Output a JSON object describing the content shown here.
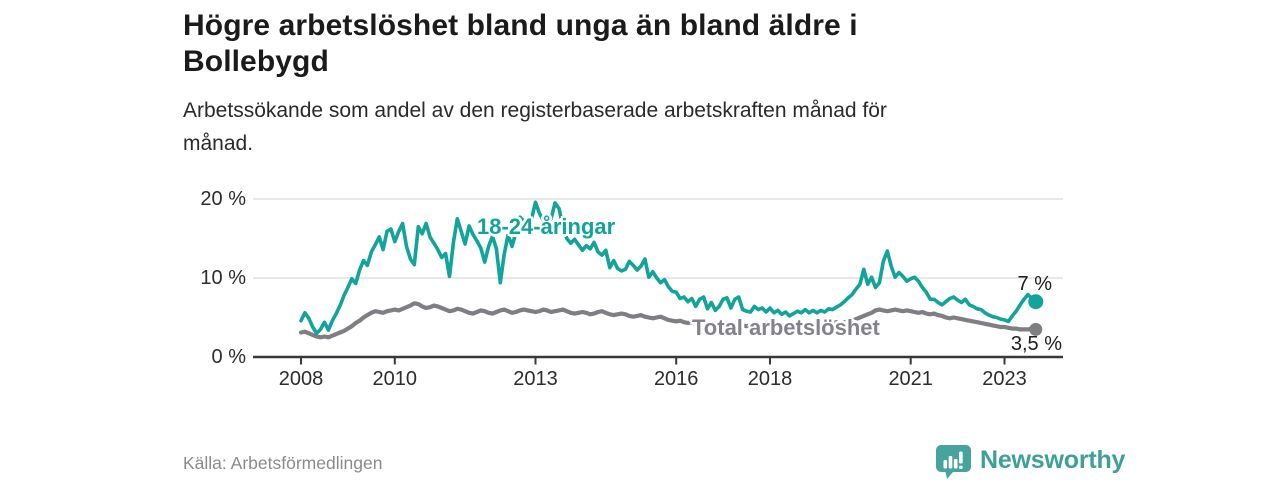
{
  "header": {
    "title_lines": [
      "Högre arbetslöshet bland unga än bland äldre i",
      "Bollebygd"
    ],
    "subtitle_lines": [
      "Arbetssökande som andel av den registerbaserade arbetskraften månad för",
      "månad."
    ]
  },
  "chart_data": {
    "type": "line",
    "title": "Högre arbetslöshet bland unga än bland äldre i Bollebygd",
    "subtitle": "Arbetssökande som andel av den registerbaserade arbetskraften månad för månad.",
    "x_unit": "month",
    "x_start": "2008-01",
    "x_end": "2023-09",
    "x_ticks": [
      "2008",
      "2010",
      "2013",
      "2016",
      "2018",
      "2021",
      "2023"
    ],
    "y_ticks": [
      "0 %",
      "10 %",
      "20 %"
    ],
    "y_tick_values": [
      0,
      10,
      20
    ],
    "ylim": [
      0,
      21
    ],
    "grid": true,
    "grid_color": "#d9d9d9",
    "axis_color": "#383838",
    "series": [
      {
        "name": "Total arbetslöshet",
        "color": "#7e7e83",
        "end_value_label": "3,5 %",
        "values": [
          3.1,
          3.2,
          3.0,
          2.8,
          2.6,
          2.5,
          2.6,
          2.5,
          2.7,
          2.9,
          3.1,
          3.3,
          3.6,
          3.9,
          4.3,
          4.6,
          5.0,
          5.3,
          5.6,
          5.8,
          5.7,
          5.6,
          5.8,
          5.9,
          6.0,
          5.9,
          6.1,
          6.3,
          6.5,
          6.8,
          6.7,
          6.4,
          6.2,
          6.3,
          6.5,
          6.4,
          6.2,
          6.0,
          5.8,
          5.9,
          6.1,
          6.0,
          5.8,
          5.6,
          5.5,
          5.7,
          5.9,
          5.8,
          5.6,
          5.5,
          5.7,
          5.9,
          6.0,
          5.8,
          5.6,
          5.7,
          5.9,
          6.0,
          5.9,
          5.8,
          5.7,
          5.8,
          6.0,
          5.9,
          5.7,
          5.8,
          5.9,
          6.0,
          5.8,
          5.6,
          5.5,
          5.6,
          5.7,
          5.6,
          5.4,
          5.5,
          5.7,
          5.8,
          5.6,
          5.4,
          5.3,
          5.4,
          5.5,
          5.4,
          5.2,
          5.1,
          5.2,
          5.3,
          5.1,
          5.0,
          4.9,
          5.0,
          5.1,
          4.9,
          4.7,
          4.6,
          4.5,
          4.6,
          4.4,
          4.3,
          4.4,
          4.2,
          4.1,
          4.2,
          4.3,
          4.1,
          4.0,
          4.1,
          4.2,
          4.1,
          4.0,
          4.1,
          4.2,
          4.0,
          3.9,
          4.0,
          4.1,
          4.0,
          3.9,
          4.0,
          4.1,
          4.0,
          3.9,
          4.0,
          4.1,
          4.0,
          3.9,
          3.8,
          3.9,
          4.0,
          3.9,
          4.0,
          4.1,
          4.2,
          4.1,
          4.2,
          4.3,
          4.4,
          4.3,
          4.4,
          4.5,
          4.6,
          4.8,
          5.0,
          5.2,
          5.4,
          5.6,
          5.9,
          6.0,
          5.9,
          5.8,
          5.9,
          6.0,
          5.9,
          5.8,
          5.9,
          5.8,
          5.7,
          5.6,
          5.7,
          5.5,
          5.4,
          5.5,
          5.3,
          5.2,
          5.0,
          4.9,
          5.0,
          4.9,
          4.8,
          4.7,
          4.6,
          4.5,
          4.4,
          4.3,
          4.2,
          4.1,
          4.0,
          3.9,
          3.8,
          3.8,
          3.7,
          3.6,
          3.6,
          3.5,
          3.5,
          3.5,
          3.6,
          3.5
        ]
      },
      {
        "name": "18-24-åringar",
        "color": "#12a49b",
        "end_value_label": "7 %",
        "values": [
          4.6,
          5.6,
          4.9,
          3.8,
          3.0,
          3.5,
          4.4,
          3.4,
          4.6,
          5.5,
          6.5,
          7.8,
          8.8,
          9.9,
          9.3,
          11.0,
          12.2,
          11.6,
          13.3,
          14.2,
          15.2,
          13.6,
          15.9,
          16.2,
          14.6,
          15.9,
          16.9,
          14.0,
          12.4,
          11.7,
          16.5,
          15.6,
          16.9,
          15.2,
          14.4,
          13.6,
          12.6,
          13.1,
          10.2,
          14.5,
          17.5,
          15.9,
          14.3,
          16.6,
          15.5,
          14.7,
          13.8,
          12.0,
          14.0,
          15.3,
          13.7,
          9.4,
          13.0,
          15.5,
          14.0,
          15.8,
          17.7,
          17.2,
          16.2,
          17.5,
          19.6,
          18.2,
          17.3,
          18.0,
          17.5,
          19.5,
          18.8,
          16.5,
          15.0,
          14.4,
          14.9,
          14.2,
          13.5,
          14.1,
          13.7,
          14.5,
          13.3,
          12.9,
          13.5,
          11.3,
          12.2,
          11.2,
          10.9,
          11.1,
          12.1,
          11.6,
          11.0,
          11.5,
          12.4,
          10.1,
          10.8,
          10.0,
          9.4,
          9.8,
          8.9,
          8.3,
          8.2,
          7.4,
          7.6,
          7.0,
          7.4,
          6.4,
          7.3,
          7.6,
          6.1,
          6.9,
          5.9,
          6.4,
          7.3,
          7.5,
          6.2,
          7.3,
          7.6,
          6.0,
          5.8,
          5.7,
          6.4,
          6.0,
          6.2,
          5.7,
          6.2,
          5.6,
          5.9,
          5.4,
          5.7,
          5.2,
          5.5,
          5.8,
          5.6,
          6.0,
          5.6,
          5.9,
          5.6,
          5.9,
          5.7,
          6.1,
          6.0,
          6.3,
          6.6,
          7.0,
          7.5,
          7.9,
          8.6,
          9.2,
          11.1,
          9.2,
          10.1,
          8.8,
          9.4,
          12.1,
          13.4,
          11.5,
          10.1,
          10.7,
          10.2,
          9.6,
          9.9,
          10.1,
          9.6,
          8.8,
          8.2,
          7.3,
          7.3,
          6.9,
          6.6,
          7.0,
          7.4,
          7.6,
          7.2,
          6.9,
          7.3,
          6.6,
          6.4,
          6.1,
          6.0,
          5.6,
          5.3,
          5.1,
          5.0,
          4.8,
          4.7,
          4.5,
          5.2,
          5.8,
          6.6,
          7.3,
          7.9,
          7.4,
          7.0
        ]
      }
    ]
  },
  "footer": {
    "source": "Källa: Arbetsförmedlingen",
    "brand": "Newsworthy",
    "brand_text_color": "#3f9f99",
    "brand_icon_color": "#47a39d"
  }
}
